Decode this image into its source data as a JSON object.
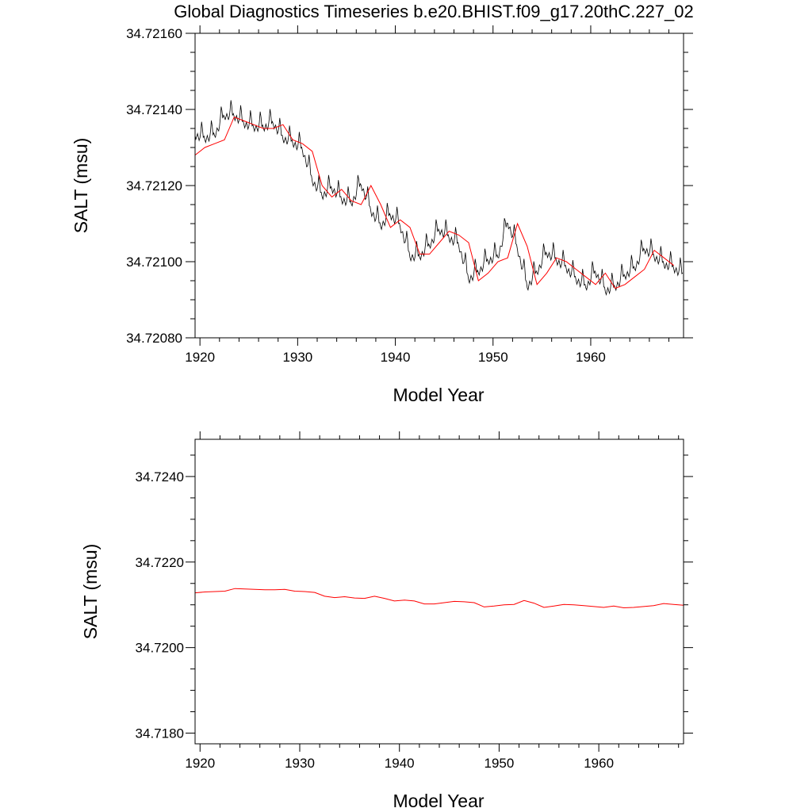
{
  "title": "Global Diagnostics Timeseries b.e20.BHIST.f09_g17.20thC.227_02",
  "colors": {
    "annual_mean": "#ff0000",
    "monthly": "#000000"
  },
  "chart_data": [
    {
      "type": "line",
      "xlabel": "Model Year",
      "ylabel": "SALT (msu)",
      "xlim": [
        1919.5,
        1969.5
      ],
      "ylim": [
        34.7208,
        34.7216
      ],
      "xticks": [
        1920,
        1930,
        1940,
        1950,
        1960
      ],
      "xtick_labels": [
        "1920",
        "1930",
        "1940",
        "1950",
        "1960"
      ],
      "yticks": [
        34.7208,
        34.721,
        34.7212,
        34.7214,
        34.7216
      ],
      "ytick_labels": [
        "34.72080",
        "34.72100",
        "34.72120",
        "34.72140",
        "34.72160"
      ],
      "grid": false,
      "series": [
        {
          "style": "monthly",
          "color": "#000000",
          "seasonal_amplitude": 0.0001,
          "x": [
            1919.5,
            1920.5,
            1921.5,
            1922.5,
            1923.5,
            1924.5,
            1925.5,
            1926.5,
            1927.5,
            1928.5,
            1929.5,
            1930.5,
            1931.5,
            1932.5,
            1933.5,
            1934.5,
            1935.5,
            1936.5,
            1937.5,
            1938.5,
            1939.5,
            1940.5,
            1941.5,
            1942.5,
            1943.5,
            1944.5,
            1945.5,
            1946.5,
            1947.5,
            1948.5,
            1949.5,
            1950.5,
            1951.5,
            1952.5,
            1953.5,
            1954.5,
            1955.5,
            1956.5,
            1957.5,
            1958.5,
            1959.5,
            1960.5,
            1961.5,
            1962.5,
            1963.5,
            1964.5,
            1965.5,
            1966.5,
            1967.5,
            1968.5,
            1969.5
          ],
          "y": [
            34.72135,
            34.72134,
            34.72135,
            34.7214,
            34.7214,
            34.72138,
            34.72137,
            34.72137,
            34.72138,
            34.72134,
            34.72133,
            34.72131,
            34.72123,
            34.72119,
            34.72121,
            34.72118,
            34.72117,
            34.72122,
            34.72115,
            34.72111,
            34.72114,
            34.72111,
            34.72103,
            34.72103,
            34.72106,
            34.7211,
            34.72108,
            34.72106,
            34.72097,
            34.72099,
            34.72102,
            34.72103,
            34.72112,
            34.72105,
            34.72095,
            34.72099,
            34.72104,
            34.72102,
            34.721,
            34.72097,
            34.72095,
            34.72099,
            34.72094,
            34.72095,
            34.72098,
            34.721,
            34.72105,
            34.72103,
            34.72101,
            34.721,
            34.72098
          ]
        },
        {
          "name": "",
          "style": "annual",
          "color": "#ff0000",
          "x": [
            1919.5,
            1920.5,
            1921.5,
            1922.5,
            1923.5,
            1924.5,
            1925.5,
            1926.5,
            1927.5,
            1928.5,
            1929.5,
            1930.5,
            1931.5,
            1932.5,
            1933.5,
            1934.5,
            1935.5,
            1936.5,
            1937.5,
            1938.5,
            1939.5,
            1940.5,
            1941.5,
            1942.5,
            1943.5,
            1944.5,
            1945.5,
            1946.5,
            1947.5,
            1948.5,
            1949.5,
            1950.5,
            1951.5,
            1952.5,
            1953.5,
            1954.5,
            1955.5,
            1956.5,
            1957.5,
            1958.5,
            1959.5,
            1960.5,
            1961.5,
            1962.5,
            1963.5,
            1964.5,
            1965.5,
            1966.5,
            1967.5,
            1968.5
          ],
          "y": [
            34.72128,
            34.7213,
            34.72131,
            34.72132,
            34.72138,
            34.72137,
            34.72136,
            34.72135,
            34.72135,
            34.72136,
            34.72132,
            34.72131,
            34.72129,
            34.7212,
            34.72117,
            34.72119,
            34.72116,
            34.72115,
            34.7212,
            34.72115,
            34.72109,
            34.72111,
            34.72109,
            34.72102,
            34.72102,
            34.72105,
            34.72108,
            34.72107,
            34.72105,
            34.72095,
            34.72097,
            34.721,
            34.72101,
            34.7211,
            34.72104,
            34.72094,
            34.72097,
            34.72101,
            34.721,
            34.72098,
            34.72096,
            34.72094,
            34.72097,
            34.72093,
            34.72094,
            34.72096,
            34.72098,
            34.72103,
            34.72101,
            34.72099
          ]
        }
      ]
    },
    {
      "type": "line",
      "xlabel": "Model Year",
      "ylabel": "SALT (msu)",
      "xlim": [
        1919.5,
        1968.5
      ],
      "ylim": [
        34.71775,
        34.72487
      ],
      "xticks": [
        1920,
        1930,
        1940,
        1950,
        1960
      ],
      "xtick_labels": [
        "1920",
        "1930",
        "1940",
        "1950",
        "1960"
      ],
      "yticks": [
        34.718,
        34.72,
        34.722,
        34.724
      ],
      "ytick_labels": [
        "34.7180",
        "34.7200",
        "34.7220",
        "34.7240"
      ],
      "grid": false,
      "series": [
        {
          "name": "",
          "style": "annual",
          "color": "#ff0000",
          "x": [
            1919.5,
            1920.5,
            1921.5,
            1922.5,
            1923.5,
            1924.5,
            1925.5,
            1926.5,
            1927.5,
            1928.5,
            1929.5,
            1930.5,
            1931.5,
            1932.5,
            1933.5,
            1934.5,
            1935.5,
            1936.5,
            1937.5,
            1938.5,
            1939.5,
            1940.5,
            1941.5,
            1942.5,
            1943.5,
            1944.5,
            1945.5,
            1946.5,
            1947.5,
            1948.5,
            1949.5,
            1950.5,
            1951.5,
            1952.5,
            1953.5,
            1954.5,
            1955.5,
            1956.5,
            1957.5,
            1958.5,
            1959.5,
            1960.5,
            1961.5,
            1962.5,
            1963.5,
            1964.5,
            1965.5,
            1966.5,
            1967.5,
            1968.5
          ],
          "y": [
            34.72128,
            34.7213,
            34.72131,
            34.72132,
            34.72138,
            34.72137,
            34.72136,
            34.72135,
            34.72135,
            34.72136,
            34.72132,
            34.72131,
            34.72129,
            34.7212,
            34.72117,
            34.72119,
            34.72116,
            34.72115,
            34.7212,
            34.72115,
            34.72109,
            34.72111,
            34.72109,
            34.72102,
            34.72102,
            34.72105,
            34.72108,
            34.72107,
            34.72105,
            34.72095,
            34.72097,
            34.721,
            34.72101,
            34.7211,
            34.72104,
            34.72094,
            34.72097,
            34.72101,
            34.721,
            34.72098,
            34.72096,
            34.72094,
            34.72097,
            34.72093,
            34.72094,
            34.72096,
            34.72098,
            34.72103,
            34.72101,
            34.72099
          ]
        }
      ]
    }
  ]
}
